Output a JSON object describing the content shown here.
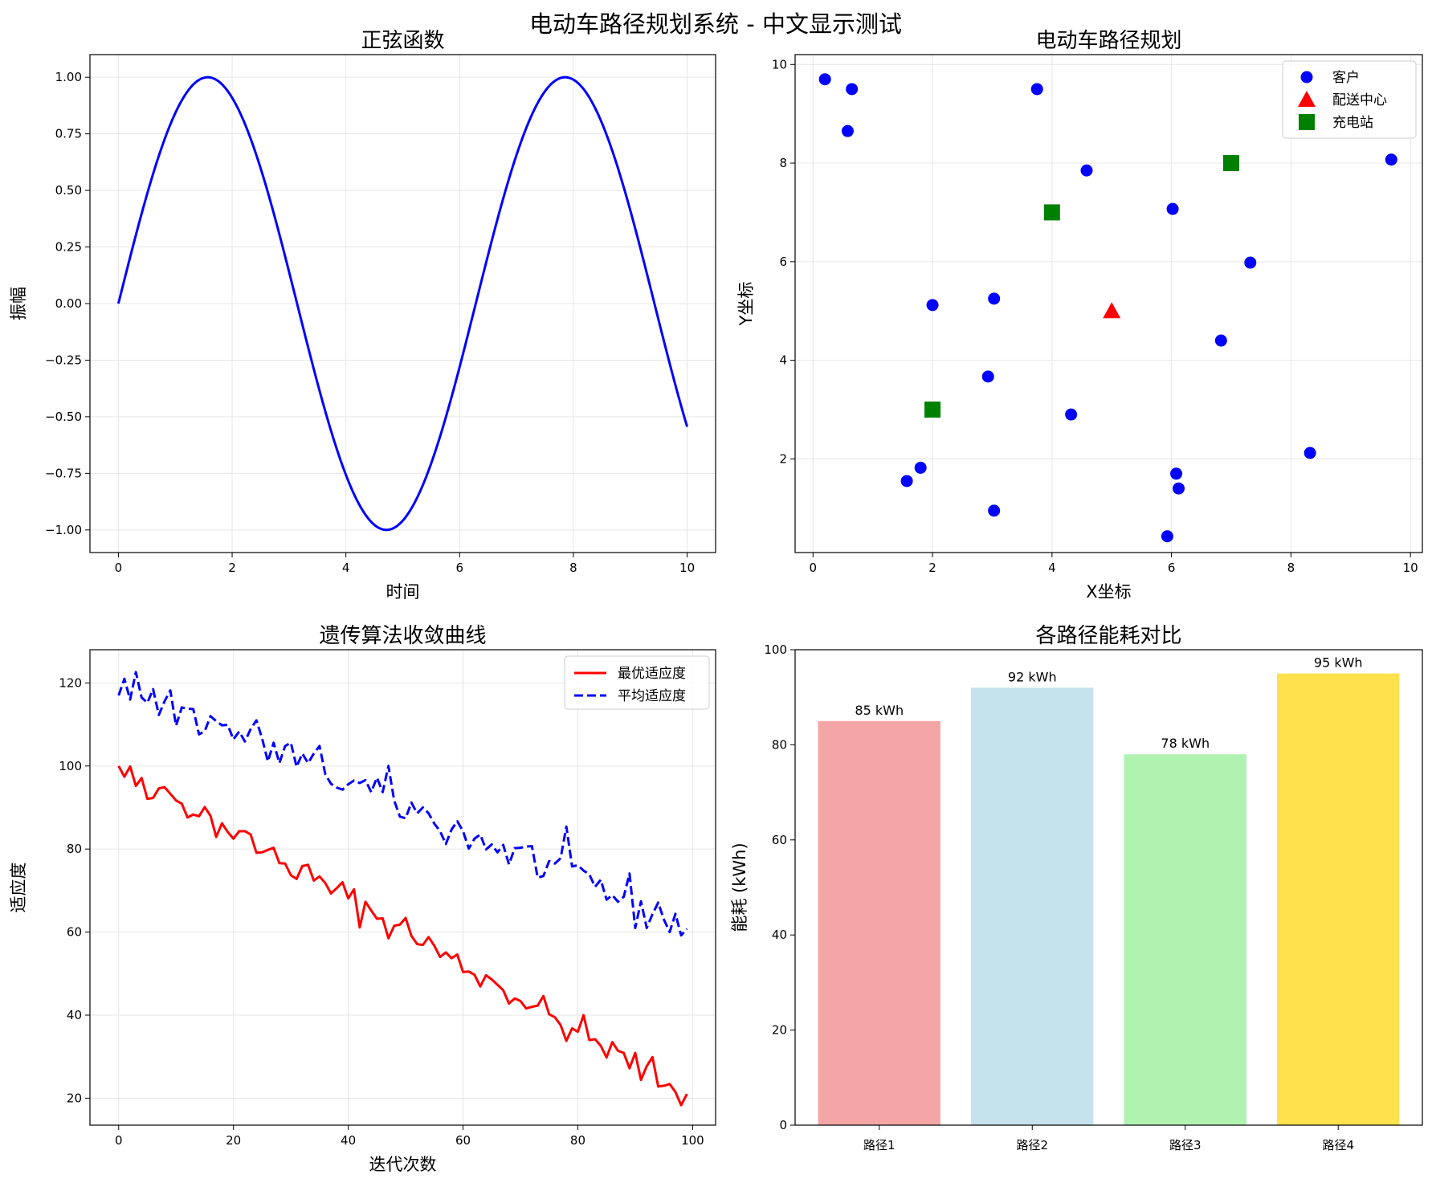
{
  "figure": {
    "suptitle": "电动车路径规划系统 - 中文显示测试",
    "colors": {
      "blue": "#0000ff",
      "red": "#ff0000",
      "green": "#008000",
      "grid": "#e6e6e6"
    }
  },
  "chart_data": [
    {
      "id": "sine",
      "type": "line",
      "title": "正弦函数",
      "xlabel": "时间",
      "ylabel": "振幅",
      "xlim": [
        -0.5,
        10.5
      ],
      "ylim": [
        -1.1,
        1.1
      ],
      "xticks": [
        0,
        2,
        4,
        6,
        8,
        10
      ],
      "xtick_labels": [
        "0",
        "2",
        "4",
        "6",
        "8",
        "10"
      ],
      "yticks": [
        -1.0,
        -0.75,
        -0.5,
        -0.25,
        0.0,
        0.25,
        0.5,
        0.75,
        1.0
      ],
      "ytick_labels": [
        "−1.00",
        "−0.75",
        "−0.50",
        "−0.25",
        "0.00",
        "0.25",
        "0.50",
        "0.75",
        "1.00"
      ],
      "grid": true,
      "series": [
        {
          "function": "sin(x)",
          "x_range": [
            0,
            10
          ],
          "color": "#0000ff",
          "style": "solid"
        }
      ]
    },
    {
      "id": "route",
      "type": "scatter",
      "title": "电动车路径规划",
      "xlabel": "X坐标",
      "ylabel": "Y坐标",
      "xlim": [
        -0.3,
        10.2
      ],
      "ylim": [
        0.1,
        10.2
      ],
      "xticks": [
        0,
        2,
        4,
        6,
        8,
        10
      ],
      "xtick_labels": [
        "0",
        "2",
        "4",
        "6",
        "8",
        "10"
      ],
      "yticks": [
        2,
        4,
        6,
        8,
        10
      ],
      "ytick_labels": [
        "2",
        "4",
        "6",
        "8",
        "10"
      ],
      "grid": true,
      "legend": {
        "position": "top-right"
      },
      "series": [
        {
          "name": "客户",
          "marker": "circle",
          "color": "#0000ff",
          "points": [
            [
              0.2,
              9.7
            ],
            [
              0.65,
              9.5
            ],
            [
              0.58,
              8.65
            ],
            [
              3.75,
              9.5
            ],
            [
              4.58,
              7.85
            ],
            [
              9.68,
              8.07
            ],
            [
              6.02,
              7.07
            ],
            [
              7.32,
              5.98
            ],
            [
              2.0,
              5.12
            ],
            [
              3.03,
              5.25
            ],
            [
              6.83,
              4.4
            ],
            [
              2.93,
              3.67
            ],
            [
              4.32,
              2.9
            ],
            [
              8.32,
              2.12
            ],
            [
              1.57,
              1.55
            ],
            [
              1.8,
              1.82
            ],
            [
              6.08,
              1.7
            ],
            [
              6.12,
              1.4
            ],
            [
              3.03,
              0.95
            ],
            [
              5.93,
              0.43
            ]
          ]
        },
        {
          "name": "配送中心",
          "marker": "triangle",
          "color": "#ff0000",
          "points": [
            [
              5.0,
              5.0
            ]
          ]
        },
        {
          "name": "充电站",
          "marker": "square",
          "color": "#008000",
          "points": [
            [
              2.0,
              3.0
            ],
            [
              4.0,
              7.0
            ],
            [
              7.0,
              8.0
            ]
          ]
        }
      ]
    },
    {
      "id": "ga",
      "type": "line",
      "title": "遗传算法收敛曲线",
      "xlabel": "迭代次数",
      "ylabel": "适应度",
      "xlim": [
        -5,
        104
      ],
      "ylim": [
        13.5,
        128
      ],
      "xticks": [
        0,
        20,
        40,
        60,
        80,
        100
      ],
      "xtick_labels": [
        "0",
        "20",
        "40",
        "60",
        "80",
        "100"
      ],
      "yticks": [
        20,
        40,
        60,
        80,
        100,
        120
      ],
      "ytick_labels": [
        "20",
        "40",
        "60",
        "80",
        "100",
        "120"
      ],
      "grid": true,
      "legend": {
        "position": "top-right"
      },
      "series": [
        {
          "name": "最优适应度",
          "color": "#ff0000",
          "style": "solid",
          "values": [
            100.0,
            97.4,
            99.9,
            95.2,
            97.1,
            92.1,
            92.3,
            94.6,
            94.9,
            93.3,
            91.7,
            90.9,
            87.6,
            88.3,
            87.9,
            90.1,
            88.0,
            82.9,
            86.2,
            84.1,
            82.5,
            84.3,
            84.3,
            83.5,
            79.1,
            79.2,
            79.8,
            80.3,
            76.6,
            76.5,
            73.7,
            72.8,
            75.9,
            76.2,
            72.4,
            73.4,
            71.8,
            69.3,
            70.6,
            72.0,
            68.1,
            70.3,
            61.1,
            67.3,
            65.2,
            63.2,
            63.3,
            58.5,
            61.5,
            61.8,
            63.4,
            59.1,
            57.1,
            56.9,
            58.8,
            56.7,
            54.0,
            55.1,
            53.7,
            54.6,
            50.4,
            50.5,
            49.7,
            46.9,
            49.6,
            48.6,
            47.3,
            46.0,
            42.8,
            44.0,
            43.4,
            41.6,
            42.0,
            42.3,
            44.6,
            40.2,
            39.5,
            37.6,
            33.8,
            36.8,
            36.0,
            40.0,
            34.0,
            34.2,
            32.6,
            29.8,
            33.5,
            31.4,
            30.9,
            27.2,
            30.9,
            24.4,
            27.7,
            29.9,
            22.8,
            23.0,
            23.4,
            21.5,
            18.3,
            21.0
          ]
        },
        {
          "name": "平均适应度",
          "color": "#0000ff",
          "style": "dashed",
          "values": [
            117.0,
            121.0,
            116.0,
            122.6,
            116.5,
            115.2,
            118.5,
            112.3,
            115.6,
            118.2,
            109.7,
            114.1,
            113.8,
            113.7,
            107.6,
            108.4,
            112.0,
            110.8,
            109.8,
            109.9,
            106.4,
            108.3,
            105.9,
            108.9,
            111.0,
            106.6,
            101.1,
            105.6,
            100.7,
            104.8,
            105.6,
            99.8,
            103.0,
            100.7,
            103.0,
            104.8,
            98.0,
            95.7,
            94.8,
            94.3,
            95.6,
            96.5,
            95.9,
            96.6,
            93.7,
            97.2,
            93.7,
            100.0,
            91.7,
            87.8,
            87.4,
            91.2,
            88.6,
            90.0,
            88.6,
            86.1,
            84.3,
            81.2,
            84.7,
            86.7,
            84.3,
            80.1,
            82.5,
            83.5,
            79.9,
            81.1,
            79.2,
            81.0,
            76.3,
            80.2,
            80.3,
            80.6,
            80.7,
            73.1,
            73.5,
            77.1,
            76.5,
            77.8,
            85.4,
            75.8,
            76.1,
            74.8,
            73.9,
            70.9,
            72.6,
            67.8,
            68.9,
            67.3,
            68.5,
            74.1,
            61.0,
            67.4,
            61.0,
            64.3,
            67.1,
            63.0,
            60.0,
            64.4,
            59.2,
            60.8
          ]
        }
      ]
    },
    {
      "id": "energy",
      "type": "bar",
      "title": "各路径能耗对比",
      "xlabel": "",
      "ylabel": "能耗 (kWh)",
      "ylim": [
        0,
        100
      ],
      "yticks": [
        0,
        20,
        40,
        60,
        80,
        100
      ],
      "ytick_labels": [
        "0",
        "20",
        "40",
        "60",
        "80",
        "100"
      ],
      "grid": false,
      "categories": [
        "路径1",
        "路径2",
        "路径3",
        "路径4"
      ],
      "values": [
        85,
        92,
        78,
        95
      ],
      "labels": [
        "85 kWh",
        "92 kWh",
        "78 kWh",
        "95 kWh"
      ],
      "colors": [
        "#f4a6a6",
        "#c5e3ed",
        "#b0f2b0",
        "#ffe14d"
      ]
    }
  ]
}
